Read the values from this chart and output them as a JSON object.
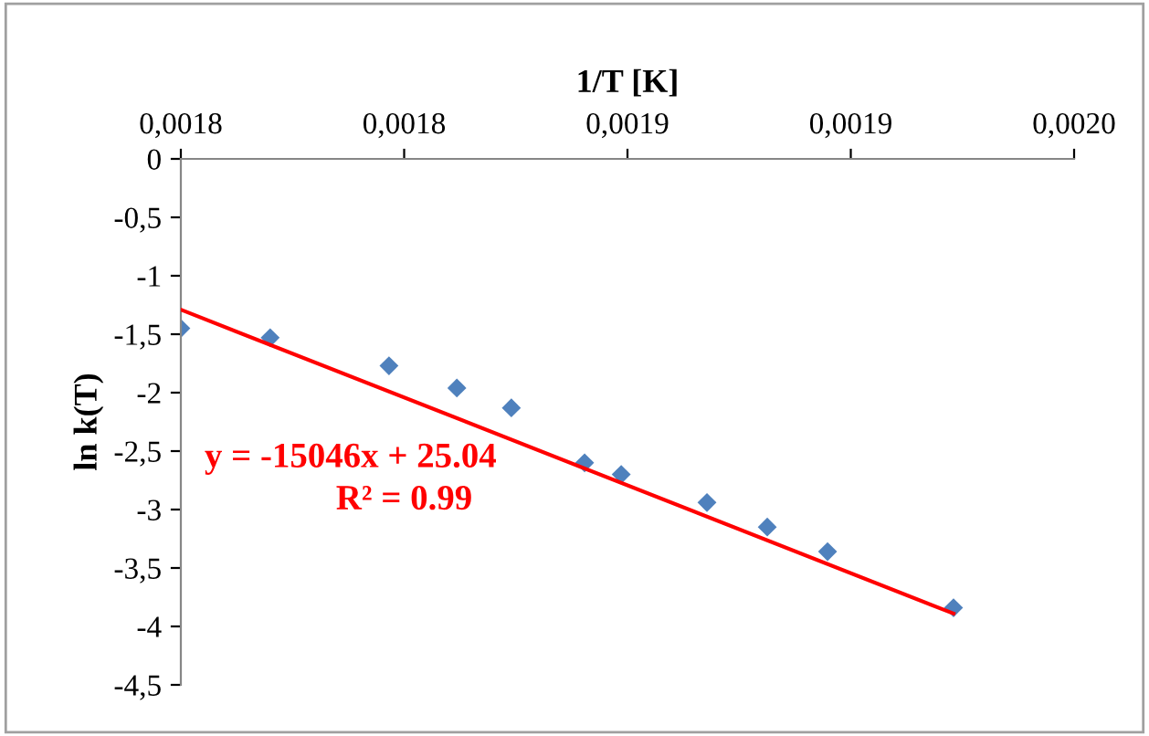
{
  "chart_data": {
    "type": "scatter",
    "xlabel": "1/T [K]",
    "ylabel": "ln k(T)",
    "xlim": [
      0.00175,
      0.00195
    ],
    "xticks": [
      {
        "value": 0.00175,
        "label": "0,0018"
      },
      {
        "value": 0.0018,
        "label": "0,0018"
      },
      {
        "value": 0.00185,
        "label": "0,0019"
      },
      {
        "value": 0.0019,
        "label": "0,0019"
      },
      {
        "value": 0.00195,
        "label": "0,0020"
      }
    ],
    "ylim": [
      -4.5,
      0
    ],
    "yticks": [
      {
        "value": 0,
        "label": "0"
      },
      {
        "value": -0.5,
        "label": "-0,5"
      },
      {
        "value": -1,
        "label": "-1"
      },
      {
        "value": -1.5,
        "label": "-1,5"
      },
      {
        "value": -2,
        "label": "-2"
      },
      {
        "value": -2.5,
        "label": "-2,5"
      },
      {
        "value": -3,
        "label": "-3"
      },
      {
        "value": -3.5,
        "label": "-3,5"
      },
      {
        "value": -4,
        "label": "-4"
      },
      {
        "value": -4.5,
        "label": "-4,5"
      }
    ],
    "grid": false,
    "legend": false,
    "series": [
      {
        "marker": "diamond",
        "color": "#4f81bd",
        "x": [
          0.00175,
          0.00177,
          0.0017966,
          0.0018118,
          0.001824,
          0.0018404,
          0.0018486,
          0.0018678,
          0.0018813,
          0.0018948,
          0.001923
        ],
        "values": [
          -1.45,
          -1.53,
          -1.77,
          -1.96,
          -2.13,
          -2.6,
          -2.7,
          -2.94,
          -3.15,
          -3.36,
          -3.84
        ]
      },
      {
        "type": "line",
        "marker": "none",
        "color": "#ff0000",
        "x": [
          0.00175,
          0.001923
        ],
        "values": [
          -1.29,
          -3.89
        ]
      }
    ],
    "annotations": [
      "y = -15046x + 25.04",
      "R² = 0.99"
    ]
  }
}
